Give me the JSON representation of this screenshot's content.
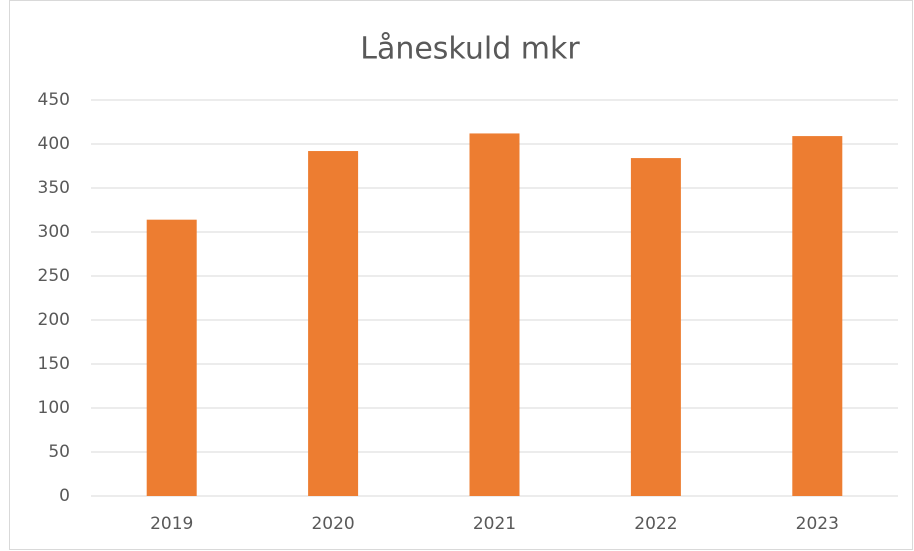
{
  "chart_data": {
    "type": "bar",
    "title": "Låneskuld mkr",
    "categories": [
      "2019",
      "2020",
      "2021",
      "2022",
      "2023"
    ],
    "values": [
      314,
      392,
      412,
      384,
      409
    ],
    "color": "#ed7d31",
    "ylim": [
      0,
      450
    ],
    "yticks": [
      0,
      50,
      100,
      150,
      200,
      250,
      300,
      350,
      400,
      450
    ],
    "grid": true
  }
}
